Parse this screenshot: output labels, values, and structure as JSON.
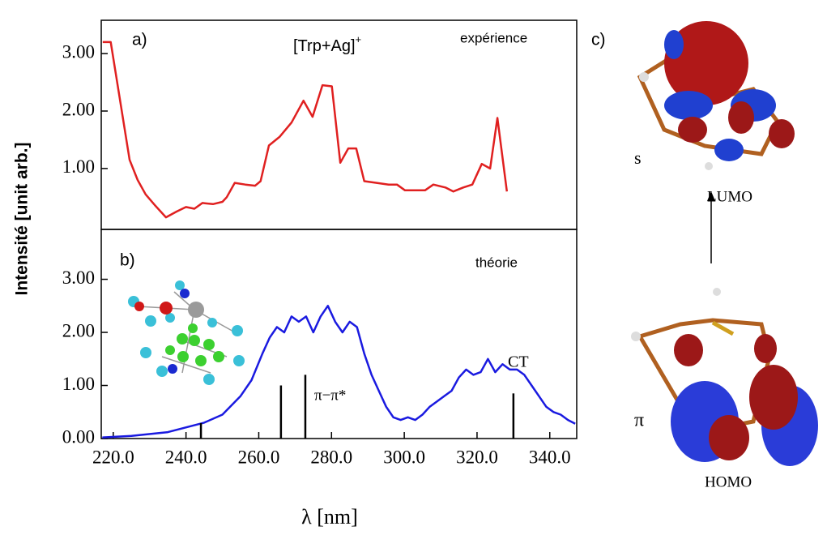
{
  "figure": {
    "ylabel": "Intensité [unit arb.]",
    "xlabel": "λ [nm]",
    "panel_label": "c)",
    "upper_orbital": "s",
    "upper_name": "LUMO",
    "lower_orbital": "π",
    "lower_name": "HOMO"
  },
  "chart_data": [
    {
      "type": "line",
      "xlim": [
        216.7,
        347.4
      ],
      "ylim": [
        -0.06,
        3.58
      ],
      "yticks": [
        {
          "value": 1,
          "label": "1.00"
        },
        {
          "value": 2,
          "label": "2.00"
        },
        {
          "value": 3,
          "label": "3.00"
        }
      ],
      "annotations": [
        "a)",
        "[Trp+Ag]",
        "+",
        "expérience"
      ],
      "series": [
        {
          "color": "#e02020",
          "x": [
            217.1,
            219.3,
            224.5,
            226.7,
            228.9,
            231.6,
            234.5,
            237.4,
            240.0,
            242.3,
            244.5,
            247.4,
            250.0,
            251.2,
            253.4,
            256.3,
            259.0,
            260.5,
            262.8,
            265.7,
            269.0,
            272.3,
            274.8,
            277.5,
            280.1,
            282.4,
            284.6,
            286.8,
            289.0,
            292.4,
            295.7,
            298.0,
            300.2,
            303.5,
            305.7,
            308.0,
            311.3,
            313.5,
            316.2,
            318.7,
            321.3,
            323.6,
            325.6,
            328.2
          ],
          "values": [
            3.2,
            3.2,
            1.15,
            0.8,
            0.55,
            0.35,
            0.15,
            0.25,
            0.33,
            0.3,
            0.4,
            0.38,
            0.42,
            0.5,
            0.75,
            0.72,
            0.7,
            0.78,
            1.4,
            1.55,
            1.8,
            2.18,
            1.9,
            2.45,
            2.43,
            1.1,
            1.35,
            1.35,
            0.78,
            0.75,
            0.72,
            0.72,
            0.62,
            0.62,
            0.62,
            0.72,
            0.67,
            0.6,
            0.67,
            0.72,
            1.08,
            1.0,
            1.88,
            0.6
          ]
        }
      ]
    },
    {
      "type": "line",
      "xlim": [
        216.7,
        347.4
      ],
      "ylim": [
        0,
        3.94
      ],
      "xticks": [
        {
          "value": 220,
          "label": "220.0"
        },
        {
          "value": 240,
          "label": "240.0"
        },
        {
          "value": 260,
          "label": "260.0"
        },
        {
          "value": 280,
          "label": "280.0"
        },
        {
          "value": 300,
          "label": "300.0"
        },
        {
          "value": 320,
          "label": "320.0"
        },
        {
          "value": 340,
          "label": "340.0"
        }
      ],
      "yticks": [
        {
          "value": 0,
          "label": "0.00"
        },
        {
          "value": 1,
          "label": "1.00"
        },
        {
          "value": 2,
          "label": "2.00"
        },
        {
          "value": 3,
          "label": "3.00"
        }
      ],
      "annotations": [
        "b)",
        "théorie",
        "CT",
        "π−π*"
      ],
      "series": [
        {
          "color": "#1a1ae0",
          "x": [
            217,
            225,
            235,
            245,
            250,
            255,
            258,
            261,
            263,
            265,
            267,
            269,
            271,
            273,
            275,
            277,
            279,
            281,
            283,
            285,
            287,
            289,
            291,
            293,
            295,
            297,
            299,
            301,
            303,
            305,
            307,
            309,
            311,
            313,
            315,
            317,
            319,
            321,
            323,
            325,
            327,
            329,
            331,
            333,
            335,
            337,
            339,
            341,
            343,
            345,
            347
          ],
          "values": [
            0.02,
            0.05,
            0.12,
            0.3,
            0.45,
            0.8,
            1.1,
            1.6,
            1.9,
            2.1,
            2.0,
            2.3,
            2.2,
            2.3,
            2.0,
            2.3,
            2.5,
            2.2,
            2.0,
            2.2,
            2.1,
            1.6,
            1.2,
            0.9,
            0.6,
            0.4,
            0.35,
            0.4,
            0.35,
            0.45,
            0.6,
            0.7,
            0.8,
            0.9,
            1.15,
            1.3,
            1.2,
            1.25,
            1.5,
            1.25,
            1.4,
            1.3,
            1.3,
            1.2,
            1.0,
            0.8,
            0.6,
            0.5,
            0.45,
            0.35,
            0.28
          ]
        }
      ],
      "sticks": {
        "color": "#000000",
        "x": [
          244.1,
          266.1,
          272.8,
          330.0
        ],
        "values": [
          0.29,
          1.0,
          1.2,
          0.85
        ]
      }
    }
  ]
}
